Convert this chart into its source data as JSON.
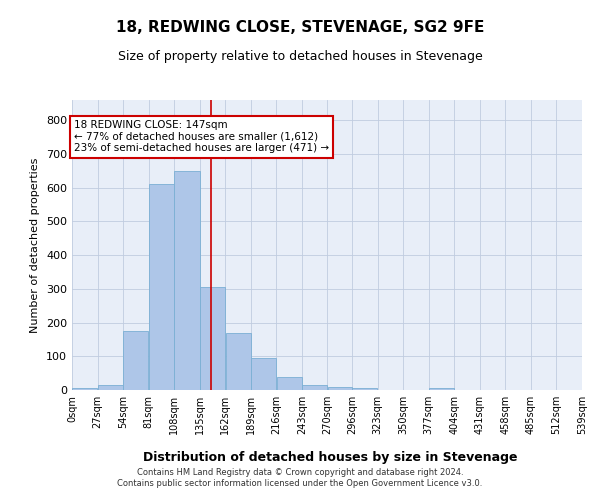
{
  "title": "18, REDWING CLOSE, STEVENAGE, SG2 9FE",
  "subtitle": "Size of property relative to detached houses in Stevenage",
  "xlabel": "Distribution of detached houses by size in Stevenage",
  "ylabel": "Number of detached properties",
  "bar_color": "#aec6e8",
  "bar_edge_color": "#7aafd4",
  "bins": [
    0,
    27,
    54,
    81,
    108,
    135,
    162,
    189,
    216,
    243,
    270,
    296,
    323,
    350,
    377,
    404,
    431,
    458,
    485,
    512,
    539
  ],
  "bin_labels": [
    "0sqm",
    "27sqm",
    "54sqm",
    "81sqm",
    "108sqm",
    "135sqm",
    "162sqm",
    "189sqm",
    "216sqm",
    "243sqm",
    "270sqm",
    "296sqm",
    "323sqm",
    "350sqm",
    "377sqm",
    "404sqm",
    "431sqm",
    "458sqm",
    "485sqm",
    "512sqm",
    "539sqm"
  ],
  "bar_heights": [
    5,
    15,
    175,
    610,
    650,
    305,
    170,
    95,
    38,
    15,
    8,
    5,
    0,
    0,
    5,
    0,
    0,
    0,
    0,
    0
  ],
  "ylim": [
    0,
    860
  ],
  "yticks": [
    0,
    100,
    200,
    300,
    400,
    500,
    600,
    700,
    800
  ],
  "vline_x": 147,
  "vline_color": "#cc0000",
  "annotation_line1": "18 REDWING CLOSE: 147sqm",
  "annotation_line2": "← 77% of detached houses are smaller (1,612)",
  "annotation_line3": "23% of semi-detached houses are larger (471) →",
  "annotation_box_color": "#ffffff",
  "annotation_box_edgecolor": "#cc0000",
  "footer1": "Contains HM Land Registry data © Crown copyright and database right 2024.",
  "footer2": "Contains public sector information licensed under the Open Government Licence v3.0.",
  "background_color": "#e8eef8",
  "grid_color": "#c0cce0"
}
